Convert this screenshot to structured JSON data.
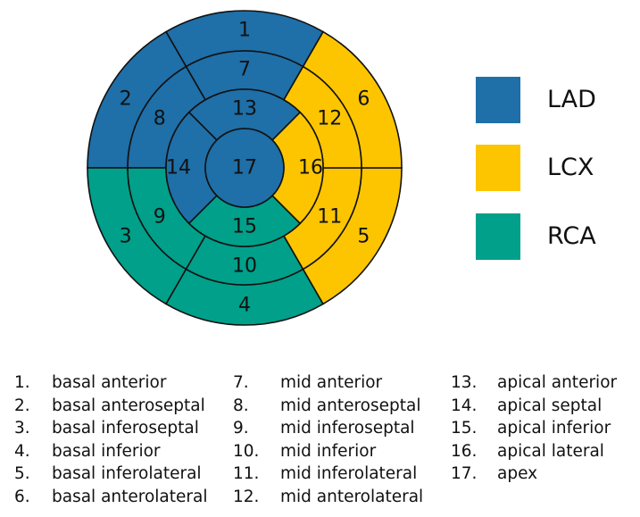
{
  "colors": {
    "LAD": "#1f6fa8",
    "LCX": "#fcc500",
    "RCA": "#00a08a"
  },
  "segments": [
    {
      "number": "1",
      "artery": "LAD"
    },
    {
      "number": "2",
      "artery": "LAD"
    },
    {
      "number": "3",
      "artery": "RCA"
    },
    {
      "number": "4",
      "artery": "RCA"
    },
    {
      "number": "5",
      "artery": "LCX"
    },
    {
      "number": "6",
      "artery": "LCX"
    },
    {
      "number": "7",
      "artery": "LAD"
    },
    {
      "number": "8",
      "artery": "LAD"
    },
    {
      "number": "9",
      "artery": "RCA"
    },
    {
      "number": "10",
      "artery": "RCA"
    },
    {
      "number": "11",
      "artery": "LCX"
    },
    {
      "number": "12",
      "artery": "LCX"
    },
    {
      "number": "13",
      "artery": "LAD"
    },
    {
      "number": "14",
      "artery": "LAD"
    },
    {
      "number": "15",
      "artery": "RCA"
    },
    {
      "number": "16",
      "artery": "LCX"
    },
    {
      "number": "17",
      "artery": "LAD"
    }
  ],
  "legend": [
    {
      "label": "LAD",
      "color": "#1f6fa8"
    },
    {
      "label": "LCX",
      "color": "#fcc500"
    },
    {
      "label": "RCA",
      "color": "#00a08a"
    }
  ],
  "key": [
    {
      "num": "1.",
      "name": "basal anterior"
    },
    {
      "num": "2.",
      "name": "basal anteroseptal"
    },
    {
      "num": "3.",
      "name": "basal inferoseptal"
    },
    {
      "num": "4.",
      "name": "basal inferior"
    },
    {
      "num": "5.",
      "name": "basal inferolateral"
    },
    {
      "num": "6.",
      "name": "basal anterolateral"
    },
    {
      "num": "7.",
      "name": "mid anterior"
    },
    {
      "num": "8.",
      "name": "mid anteroseptal"
    },
    {
      "num": "9.",
      "name": "mid inferoseptal"
    },
    {
      "num": "10.",
      "name": "mid inferior"
    },
    {
      "num": "11.",
      "name": "mid inferolateral"
    },
    {
      "num": "12.",
      "name": "mid anterolateral"
    },
    {
      "num": "13.",
      "name": "apical anterior"
    },
    {
      "num": "14.",
      "name": "apical septal"
    },
    {
      "num": "15.",
      "name": "apical inferior"
    },
    {
      "num": "16.",
      "name": "apical lateral"
    },
    {
      "num": "17.",
      "name": "apex"
    }
  ]
}
